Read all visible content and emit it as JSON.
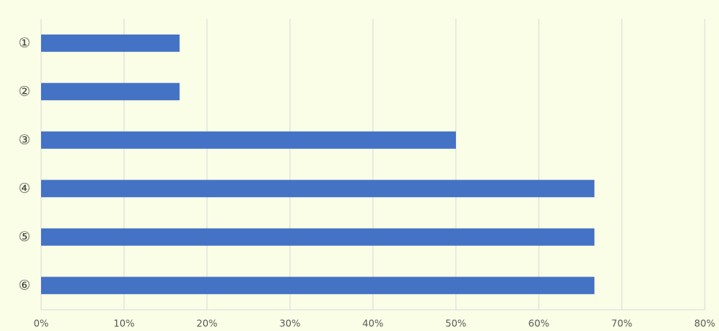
{
  "chart_data": {
    "type": "bar",
    "orientation": "horizontal",
    "categories": [
      "①",
      "②",
      "③",
      "④",
      "⑤",
      "⑥"
    ],
    "values": [
      16.7,
      16.7,
      50,
      66.7,
      66.7,
      66.7
    ],
    "color": "#4472c4",
    "xlim": [
      0,
      80
    ],
    "xticks": [
      {
        "value": 0,
        "label": "0%"
      },
      {
        "value": 10,
        "label": "10%"
      },
      {
        "value": 20,
        "label": "20%"
      },
      {
        "value": 30,
        "label": "30%"
      },
      {
        "value": 40,
        "label": "40%"
      },
      {
        "value": 50,
        "label": "50%"
      },
      {
        "value": 60,
        "label": "60%"
      },
      {
        "value": 70,
        "label": "70%"
      },
      {
        "value": 80,
        "label": "80%"
      }
    ],
    "grid": true
  }
}
